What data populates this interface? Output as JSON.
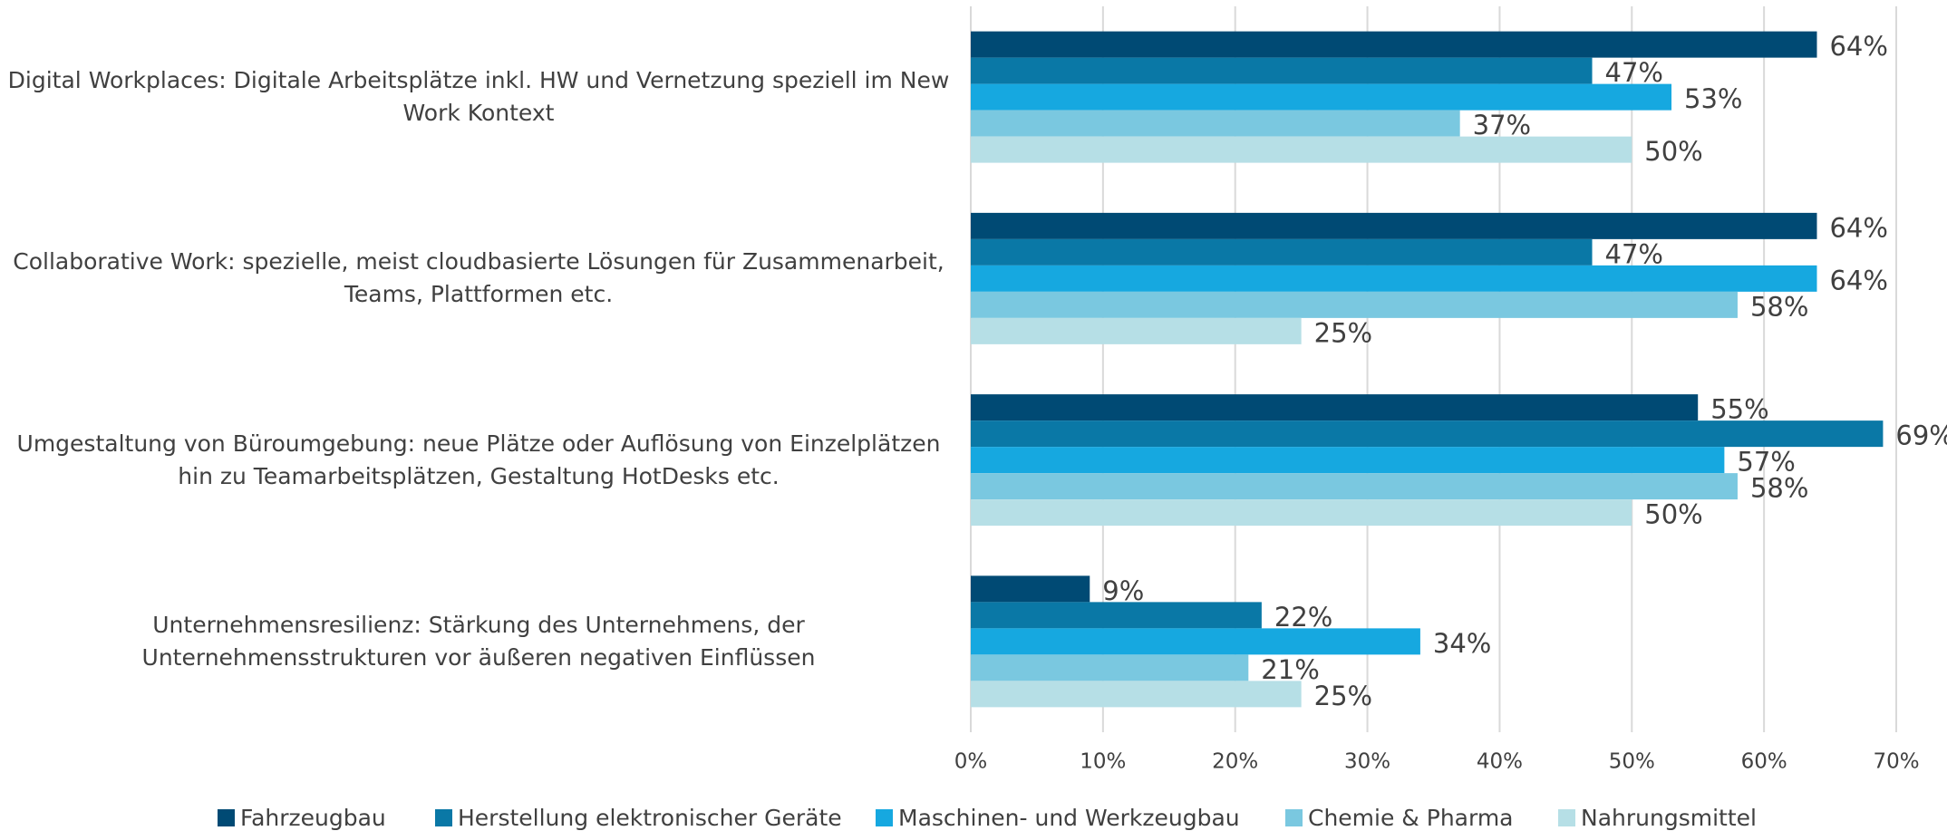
{
  "chart_data": {
    "type": "bar",
    "orientation": "horizontal",
    "categories": [
      "Digital Workplaces: Digitale Arbeitsplätze inkl. HW und Vernetzung speziell im New Work Kontext",
      "Collaborative Work: spezielle, meist cloudbasierte Lösungen für Zusammenarbeit, Teams, Plattformen etc.",
      "Umgestaltung von Büroumgebung: neue Plätze oder Auflösung von Einzelplätzen hin zu Teamarbeitsplätzen, Gestaltung HotDesks etc.",
      "Unternehmensresilienz: Stärkung des Unternehmens, der Unternehmensstrukturen vor äußeren negativen Einflüssen"
    ],
    "series": [
      {
        "name": "Fahrzeugbau",
        "color": "#004a74",
        "values": [
          64,
          64,
          55,
          9
        ],
        "value_labels": [
          "64%",
          "64%",
          "55%",
          "9%"
        ]
      },
      {
        "name": "Herstellung elektronischer Geräte",
        "color": "#0a78a6",
        "values": [
          47,
          47,
          69,
          22
        ],
        "value_labels": [
          "47%",
          "47%",
          "69%",
          "22%"
        ]
      },
      {
        "name": "Maschinen- und Werkzeugbau",
        "color": "#16a8e0",
        "values": [
          53,
          64,
          57,
          34
        ],
        "value_labels": [
          "53%",
          "64%",
          "57%",
          "34%"
        ]
      },
      {
        "name": "Chemie & Pharma",
        "color": "#7ac8e0",
        "values": [
          37,
          58,
          58,
          21
        ],
        "value_labels": [
          "37%",
          "58%",
          "58%",
          "21%"
        ]
      },
      {
        "name": "Nahrungsmittel",
        "color": "#b6dfe6",
        "values": [
          50,
          25,
          50,
          25
        ],
        "value_labels": [
          "50%",
          "25%",
          "50%",
          "25%"
        ]
      }
    ],
    "xlim": [
      0,
      70
    ],
    "xticks": [
      {
        "value": 0,
        "label": "0%"
      },
      {
        "value": 10,
        "label": "10%"
      },
      {
        "value": 20,
        "label": "20%"
      },
      {
        "value": 30,
        "label": "30%"
      },
      {
        "value": 40,
        "label": "40%"
      },
      {
        "value": 50,
        "label": "50%"
      },
      {
        "value": 60,
        "label": "60%"
      },
      {
        "value": 70,
        "label": "70%"
      }
    ],
    "grid": true,
    "legend": "bottom"
  }
}
